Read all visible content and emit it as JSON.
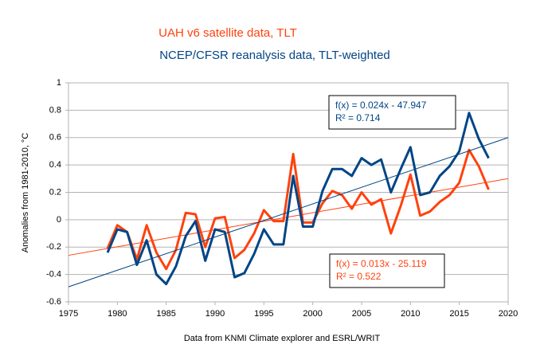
{
  "chart_data": {
    "type": "line",
    "y_label": "Anomalies from 1981-2010, °C",
    "x_label": "Data from KNMI Climate explorer and ESRL/WRIT",
    "x": [
      1979,
      1980,
      1981,
      1982,
      1983,
      1984,
      1985,
      1986,
      1987,
      1988,
      1989,
      1990,
      1991,
      1992,
      1993,
      1994,
      1995,
      1996,
      1997,
      1998,
      1999,
      2000,
      2001,
      2002,
      2003,
      2004,
      2005,
      2006,
      2007,
      2008,
      2009,
      2010,
      2011,
      2012,
      2013,
      2014,
      2015,
      2016,
      2017,
      2018
    ],
    "series": [
      {
        "name": "UAH v6 satellite data, TLT",
        "color": "#ff420e",
        "values": [
          -0.21,
          -0.04,
          -0.09,
          -0.29,
          -0.04,
          -0.24,
          -0.36,
          -0.22,
          0.05,
          0.04,
          -0.2,
          0.01,
          0.02,
          -0.28,
          -0.22,
          -0.1,
          0.07,
          -0.01,
          -0.01,
          0.48,
          -0.02,
          -0.02,
          0.12,
          0.21,
          0.18,
          0.08,
          0.2,
          0.11,
          0.15,
          -0.1,
          0.1,
          0.33,
          0.03,
          0.06,
          0.13,
          0.18,
          0.27,
          0.51,
          0.39,
          0.22
        ],
        "trend": {
          "x": [
            1975,
            2020
          ],
          "values": [
            -0.26,
            0.3
          ],
          "equation": "f(x) = 0.013x - 25.119",
          "r2": "R² = 0.522"
        }
      },
      {
        "name": "NCEP/CFSR reanalysis data, TLT-weighted",
        "color": "#004586",
        "values": [
          -0.24,
          -0.07,
          -0.09,
          -0.33,
          -0.15,
          -0.4,
          -0.47,
          -0.34,
          -0.12,
          -0.01,
          -0.3,
          -0.07,
          -0.09,
          -0.42,
          -0.39,
          -0.25,
          -0.07,
          -0.18,
          -0.18,
          0.32,
          -0.05,
          -0.05,
          0.21,
          0.37,
          0.37,
          0.32,
          0.45,
          0.4,
          0.44,
          0.2,
          0.37,
          0.53,
          0.18,
          0.2,
          0.32,
          0.39,
          0.5,
          0.78,
          0.59,
          0.45
        ],
        "trend": {
          "x": [
            1975,
            2020
          ],
          "values": [
            -0.49,
            0.6
          ],
          "equation": "f(x) = 0.024x - 47.947",
          "r2": "R² = 0.714"
        }
      }
    ],
    "xlim": [
      1975,
      2020
    ],
    "xticks": [
      1975,
      1980,
      1985,
      1990,
      1995,
      2000,
      2005,
      2010,
      2015,
      2020
    ],
    "ylim": [
      -0.6,
      1
    ],
    "yticks": [
      -0.6,
      -0.4,
      -0.2,
      0,
      0.2,
      0.4,
      0.6,
      0.8,
      1
    ],
    "grid": true
  }
}
